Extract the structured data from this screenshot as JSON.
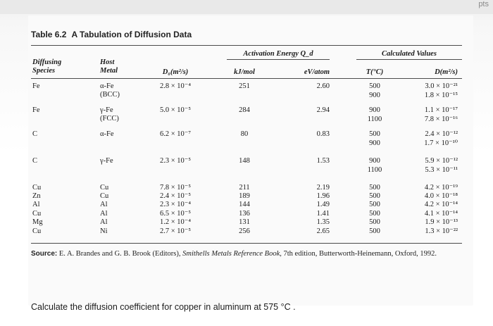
{
  "corner_text": "pts",
  "table": {
    "number": "Table 6.2",
    "title": "A Tabulation of Diffusion Data",
    "headers": {
      "diffusing_species": [
        "Diffusing",
        "Species"
      ],
      "host_metal": [
        "Host",
        "Metal"
      ],
      "d0": "D₀(m²/s)",
      "activation_energy": "Activation Energy Q_d",
      "kj_mol": "kJ/mol",
      "ev_atom": "eV/atom",
      "calculated_values": "Calculated Values",
      "t_c": "T(°C)",
      "d": "D(m²/s)"
    },
    "rows": [
      {
        "species": "Fe",
        "host": [
          "α-Fe",
          "(BCC)"
        ],
        "d0": "2.8 × 10⁻⁴",
        "kj": "251",
        "ev": "2.60",
        "t": [
          "500",
          "900"
        ],
        "d": [
          "3.0 × 10⁻²¹",
          "1.8 × 10⁻¹⁵"
        ]
      },
      {
        "species": "Fe",
        "host": [
          "γ-Fe",
          "(FCC)"
        ],
        "d0": "5.0 × 10⁻⁵",
        "kj": "284",
        "ev": "2.94",
        "t": [
          "900",
          "1100"
        ],
        "d": [
          "1.1 × 10⁻¹⁷",
          "7.8 × 10⁻¹⁶"
        ]
      },
      {
        "species": "C",
        "host": [
          "α-Fe"
        ],
        "d0": "6.2 × 10⁻⁷",
        "kj": "80",
        "ev": "0.83",
        "t": [
          "500",
          "900"
        ],
        "d": [
          "2.4 × 10⁻¹²",
          "1.7 × 10⁻¹⁰"
        ]
      },
      {
        "species": "C",
        "host": [
          "γ-Fe"
        ],
        "d0": "2.3 × 10⁻⁵",
        "kj": "148",
        "ev": "1.53",
        "t": [
          "900",
          "1100"
        ],
        "d": [
          "5.9 × 10⁻¹²",
          "5.3 × 10⁻¹¹"
        ]
      },
      {
        "species": "Cu",
        "host": [
          "Cu"
        ],
        "d0": "7.8 × 10⁻⁵",
        "kj": "211",
        "ev": "2.19",
        "t": [
          "500"
        ],
        "d": [
          "4.2 × 10⁻¹⁹"
        ]
      },
      {
        "species": "Zn",
        "host": [
          "Cu"
        ],
        "d0": "2.4 × 10⁻⁵",
        "kj": "189",
        "ev": "1.96",
        "t": [
          "500"
        ],
        "d": [
          "4.0 × 10⁻¹⁸"
        ]
      },
      {
        "species": "Al",
        "host": [
          "Al"
        ],
        "d0": "2.3 × 10⁻⁴",
        "kj": "144",
        "ev": "1.49",
        "t": [
          "500"
        ],
        "d": [
          "4.2 × 10⁻¹⁴"
        ]
      },
      {
        "species": "Cu",
        "host": [
          "Al"
        ],
        "d0": "6.5 × 10⁻⁵",
        "kj": "136",
        "ev": "1.41",
        "t": [
          "500"
        ],
        "d": [
          "4.1 × 10⁻¹⁴"
        ]
      },
      {
        "species": "Mg",
        "host": [
          "Al"
        ],
        "d0": "1.2 × 10⁻⁴",
        "kj": "131",
        "ev": "1.35",
        "t": [
          "500"
        ],
        "d": [
          "1.9 × 10⁻¹³"
        ]
      },
      {
        "species": "Cu",
        "host": [
          "Ni"
        ],
        "d0": "2.7 × 10⁻⁵",
        "kj": "256",
        "ev": "2.65",
        "t": [
          "500"
        ],
        "d": [
          "1.3 × 10⁻²²"
        ]
      }
    ],
    "source": {
      "label": "Source:",
      "text_before": " E. A. Brandes and G. B. Brook (Editors), ",
      "book": "Smithells Metals Reference Book,",
      "text_after": " 7th edition, Butterworth-Heinemann, Oxford, 1992."
    }
  },
  "question": "Calculate the diffusion coefficient for copper in aluminum at 575 °C ."
}
